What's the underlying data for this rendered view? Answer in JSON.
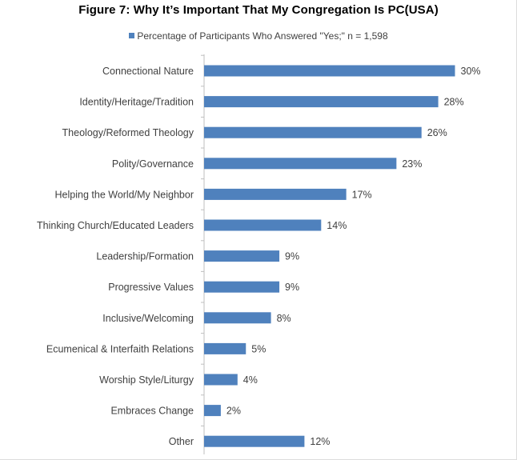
{
  "colors": {
    "bar": "#4F81BD",
    "axis": "#bfbfbf",
    "text": "#404040"
  },
  "chart_data": {
    "type": "bar",
    "orientation": "horizontal",
    "title": "Figure 7: Why It’s Important That My Congregation Is PC(USA)",
    "legend": {
      "position": "top",
      "entries": [
        "Percentage of Participants Who Answered \"Yes;\" n = 1,598"
      ]
    },
    "categories": [
      "Connectional Nature",
      "Identity/Heritage/Tradition",
      "Theology/Reformed Theology",
      "Polity/Governance",
      "Helping the World/My Neighbor",
      "Thinking Church/Educated Leaders",
      "Leadership/Formation",
      "Progressive Values",
      "Inclusive/Welcoming",
      "Ecumenical & Interfaith Relations",
      "Worship Style/Liturgy",
      "Embraces Change",
      "Other"
    ],
    "series": [
      {
        "name": "Percentage of Participants Who Answered \"Yes;\" n = 1,598",
        "values": [
          30,
          28,
          26,
          23,
          17,
          14,
          9,
          9,
          8,
          5,
          4,
          2,
          12
        ]
      }
    ],
    "data_labels": [
      "30%",
      "28%",
      "26%",
      "23%",
      "17%",
      "14%",
      "9%",
      "9%",
      "8%",
      "5%",
      "4%",
      "2%",
      "12%"
    ],
    "xlim": [
      0,
      35
    ],
    "grid": false
  }
}
